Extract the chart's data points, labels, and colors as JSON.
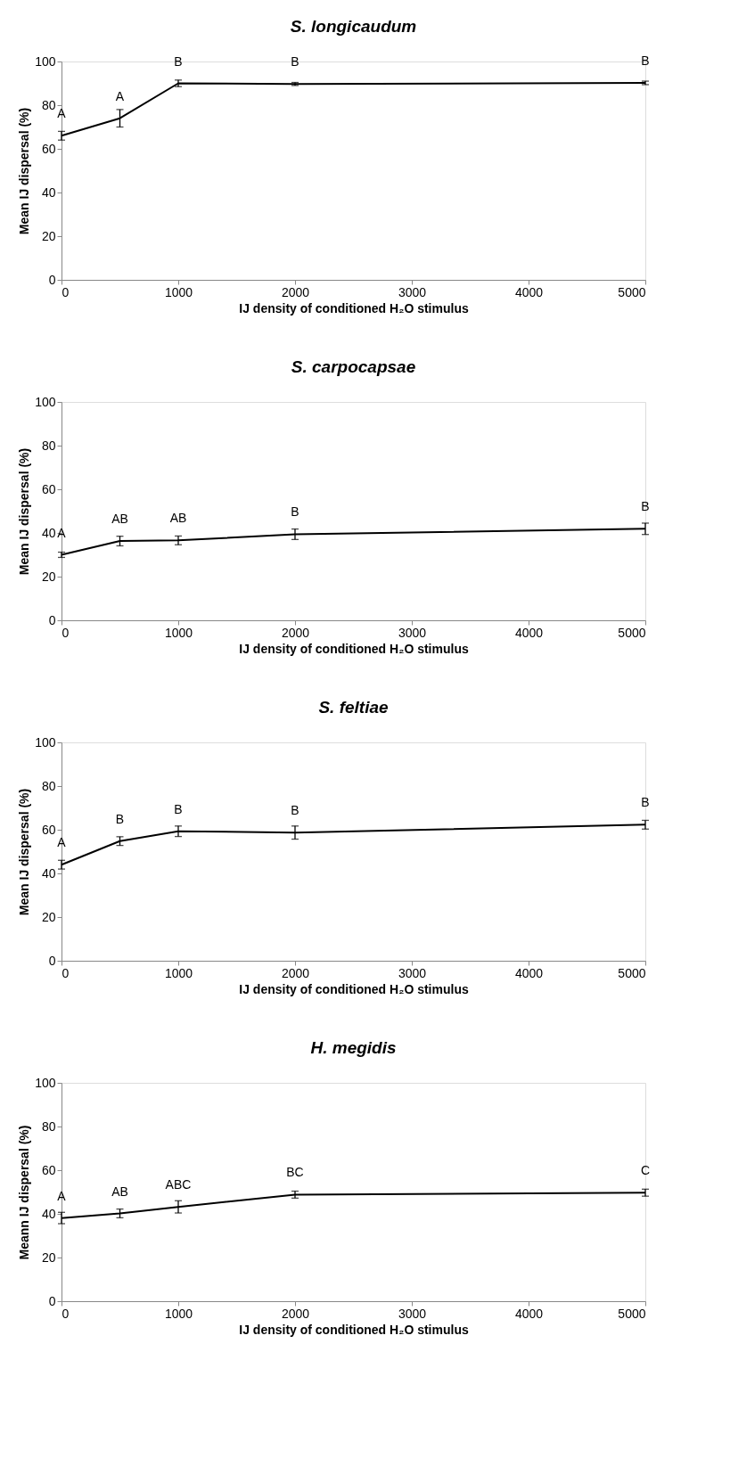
{
  "chart_data": [
    {
      "type": "line",
      "title": "S. longicaudum",
      "xlabel": "IJ density of  conditioned H₂O stimulus",
      "ylabel": "Mean IJ dispersal (%)",
      "x": [
        0,
        500,
        1000,
        2000,
        5000
      ],
      "series": [
        {
          "color": "#000000",
          "values": [
            66,
            74,
            90,
            89.7,
            90.2
          ],
          "errors": [
            2,
            4,
            1.5,
            0.7,
            0.8
          ]
        }
      ],
      "xlim": [
        0,
        5000
      ],
      "xticks": [
        0,
        1000,
        2000,
        3000,
        4000,
        5000
      ],
      "ylim": [
        0,
        100
      ],
      "yticks": [
        0,
        20,
        40,
        60,
        80,
        100
      ],
      "grid": false,
      "marker": "none",
      "line_style": "solid",
      "annotations": [
        {
          "text": "A",
          "x": 0,
          "y": 66
        },
        {
          "text": "A",
          "x": 500,
          "y": 74
        },
        {
          "text": "B",
          "x": 1000,
          "y": 90
        },
        {
          "text": "B",
          "x": 2000,
          "y": 89.7
        },
        {
          "text": "B",
          "x": 5000,
          "y": 90.2
        }
      ]
    },
    {
      "type": "line",
      "title": "S. carpocapsae",
      "xlabel": "IJ density of  conditioned H₂O stimulus",
      "ylabel": "Mean IJ dispersal (%)",
      "x": [
        0,
        500,
        1000,
        2000,
        5000
      ],
      "series": [
        {
          "color": "#000000",
          "values": [
            30,
            36.3,
            36.6,
            39.4,
            41.9
          ],
          "errors": [
            1.2,
            2.2,
            2,
            2.4,
            2.6
          ]
        }
      ],
      "xlim": [
        0,
        5000
      ],
      "xticks": [
        0,
        1000,
        2000,
        3000,
        4000,
        5000
      ],
      "ylim": [
        0,
        100
      ],
      "yticks": [
        0,
        20,
        40,
        60,
        80,
        100
      ],
      "grid": false,
      "marker": "none",
      "line_style": "solid",
      "annotations": [
        {
          "text": "A",
          "x": 0,
          "y": 30
        },
        {
          "text": "AB",
          "x": 500,
          "y": 36.3
        },
        {
          "text": "AB",
          "x": 1000,
          "y": 36.6
        },
        {
          "text": "B",
          "x": 2000,
          "y": 39.4
        },
        {
          "text": "B",
          "x": 5000,
          "y": 41.9
        }
      ]
    },
    {
      "type": "line",
      "title": "S. feltiae",
      "xlabel": "IJ density of conditioned H₂O stimulus",
      "ylabel": "Mean IJ dispersal (%)",
      "x": [
        0,
        500,
        1000,
        2000,
        5000
      ],
      "series": [
        {
          "color": "#000000",
          "values": [
            44,
            54.8,
            59.3,
            58.7,
            62.3
          ],
          "errors": [
            2,
            2,
            2.4,
            3,
            2
          ]
        }
      ],
      "xlim": [
        0,
        5000
      ],
      "xticks": [
        0,
        1000,
        2000,
        3000,
        4000,
        5000
      ],
      "ylim": [
        0,
        100
      ],
      "yticks": [
        0,
        20,
        40,
        60,
        80,
        100
      ],
      "grid": false,
      "marker": "none",
      "line_style": "solid",
      "annotations": [
        {
          "text": "A",
          "x": 0,
          "y": 44
        },
        {
          "text": "B",
          "x": 500,
          "y": 54.8
        },
        {
          "text": "B",
          "x": 1000,
          "y": 59.3
        },
        {
          "text": "B",
          "x": 2000,
          "y": 58.7
        },
        {
          "text": "B",
          "x": 5000,
          "y": 62.3
        }
      ]
    },
    {
      "type": "line",
      "title": "H. megidis",
      "xlabel": "IJ density of conditioned H₂O stimulus",
      "ylabel": "Meann IJ dispersal (%)",
      "x": [
        0,
        500,
        1000,
        2000,
        5000
      ],
      "series": [
        {
          "color": "#000000",
          "values": [
            38.1,
            40.2,
            43.2,
            48.8,
            49.7
          ],
          "errors": [
            2.6,
            2,
            2.8,
            1.6,
            1.6
          ]
        }
      ],
      "xlim": [
        0,
        5000
      ],
      "xticks": [
        0,
        1000,
        2000,
        3000,
        4000,
        5000
      ],
      "ylim": [
        0,
        100
      ],
      "yticks": [
        0,
        20,
        40,
        60,
        80,
        100
      ],
      "grid": false,
      "marker": "none",
      "line_style": "solid",
      "annotations": [
        {
          "text": "A",
          "x": 0,
          "y": 38.1
        },
        {
          "text": "AB",
          "x": 500,
          "y": 40.2
        },
        {
          "text": "ABC",
          "x": 1000,
          "y": 43.2
        },
        {
          "text": "BC",
          "x": 2000,
          "y": 48.8
        },
        {
          "text": "C",
          "x": 5000,
          "y": 49.7
        }
      ]
    }
  ]
}
